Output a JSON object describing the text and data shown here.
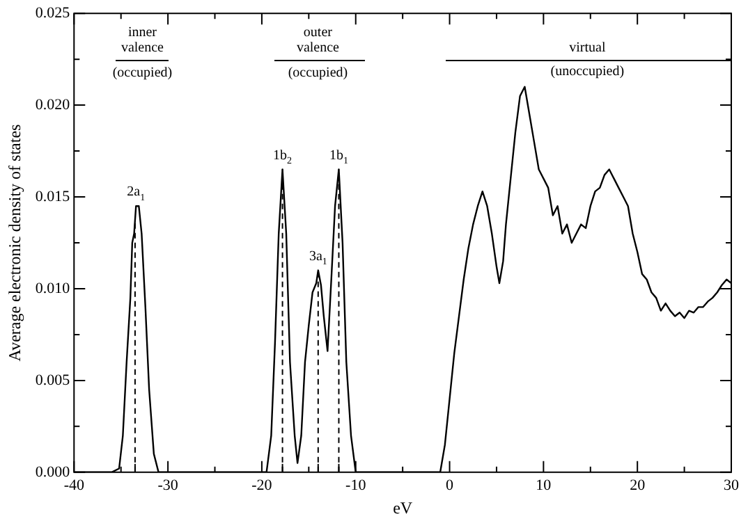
{
  "chart_data": {
    "type": "line",
    "xlabel": "eV",
    "ylabel": "Average electronic density of states",
    "x": [
      -40,
      -36,
      -35.2,
      -34.8,
      -34.4,
      -34,
      -33.8,
      -33.6,
      -33.4,
      -33.1,
      -32.8,
      -32.4,
      -32,
      -31.5,
      -31,
      -19.5,
      -19,
      -18.6,
      -18.2,
      -17.8,
      -17.4,
      -17,
      -16.5,
      -16.2,
      -15.8,
      -15.4,
      -15,
      -14.6,
      -14.2,
      -14,
      -13.7,
      -13.4,
      -13,
      -12.6,
      -12.2,
      -11.8,
      -11.4,
      -11,
      -10.5,
      -10,
      -1,
      -0.5,
      0,
      0.5,
      1,
      1.5,
      2,
      2.5,
      3,
      3.5,
      4,
      4.5,
      5,
      5.3,
      5.7,
      6,
      6.5,
      7,
      7.5,
      8,
      8.5,
      9,
      9.5,
      10,
      10.5,
      11,
      11.5,
      12,
      12.5,
      13,
      13.5,
      14,
      14.5,
      15,
      15.5,
      16,
      16.5,
      17,
      17.5,
      18,
      18.5,
      19,
      19.5,
      20,
      20.5,
      21,
      21.5,
      22,
      22.5,
      23,
      23.5,
      24,
      24.5,
      25,
      25.5,
      26,
      26.5,
      27,
      27.5,
      28,
      28.5,
      29,
      29.5,
      30
    ],
    "series": [
      {
        "color": "#000000",
        "values": [
          0,
          0,
          0.0002,
          0.002,
          0.006,
          0.0095,
          0.0125,
          0.013,
          0.0145,
          0.0145,
          0.013,
          0.009,
          0.0045,
          0.001,
          0,
          0,
          0.002,
          0.007,
          0.013,
          0.0165,
          0.013,
          0.006,
          0.002,
          0.0005,
          0.002,
          0.006,
          0.008,
          0.0098,
          0.0103,
          0.011,
          0.0102,
          0.0085,
          0.0066,
          0.0105,
          0.0145,
          0.0165,
          0.0125,
          0.006,
          0.002,
          0,
          0,
          0.0015,
          0.004,
          0.0065,
          0.0085,
          0.0105,
          0.0122,
          0.0135,
          0.0145,
          0.0153,
          0.0145,
          0.013,
          0.0112,
          0.0103,
          0.0115,
          0.0135,
          0.016,
          0.0185,
          0.0205,
          0.021,
          0.0195,
          0.018,
          0.0165,
          0.016,
          0.0155,
          0.014,
          0.0145,
          0.013,
          0.0135,
          0.0125,
          0.013,
          0.0135,
          0.0133,
          0.0145,
          0.0153,
          0.0155,
          0.0162,
          0.0165,
          0.016,
          0.0155,
          0.015,
          0.0145,
          0.013,
          0.012,
          0.0108,
          0.0105,
          0.0098,
          0.0095,
          0.0088,
          0.0092,
          0.0088,
          0.0085,
          0.0087,
          0.0084,
          0.0088,
          0.0087,
          0.009,
          0.009,
          0.0093,
          0.0095,
          0.0098,
          0.0102,
          0.0105,
          0.0103
        ]
      }
    ],
    "xlim": [
      -40,
      30
    ],
    "xticks": [
      -40,
      {
        "value": -35,
        "label": null
      },
      -30,
      {
        "value": -25,
        "label": null
      },
      -20,
      {
        "value": -15,
        "label": null
      },
      -10,
      {
        "value": -5,
        "label": null
      },
      0,
      {
        "value": 5,
        "label": null
      },
      10,
      {
        "value": 15,
        "label": null
      },
      20,
      {
        "value": 25,
        "label": null
      },
      30
    ],
    "ylim": [
      0,
      0.025
    ],
    "yticks": [
      {
        "value": 0,
        "label": "0.000"
      },
      {
        "value": 0.0025,
        "label": null
      },
      {
        "value": 0.005,
        "label": "0.005"
      },
      {
        "value": 0.0075,
        "label": null
      },
      {
        "value": 0.01,
        "label": "0.010"
      },
      {
        "value": 0.0125,
        "label": null
      },
      {
        "value": 0.015,
        "label": "0.015"
      },
      {
        "value": 0.0175,
        "label": null
      },
      {
        "value": 0.02,
        "label": "0.020"
      },
      {
        "value": 0.0225,
        "label": null
      },
      {
        "value": 0.025,
        "label": "0.025"
      }
    ],
    "ref_lines": [
      {
        "axis": "x",
        "value": -33.5,
        "line_style": "dashed"
      },
      {
        "axis": "x",
        "value": -17.8,
        "line_style": "dashed"
      },
      {
        "axis": "x",
        "value": -14,
        "line_style": "dashed"
      },
      {
        "axis": "x",
        "value": -11.8,
        "line_style": "dashed"
      }
    ],
    "annotations": [
      "inner",
      "valence",
      "(occupied)",
      "outer",
      "valence",
      "(occupied)",
      "virtual",
      "(unoccupied)",
      {
        "text": "2a$_{1}$",
        "x": -33.4,
        "y": 0.0145
      },
      {
        "text": "1b$_{2}$",
        "x": -17.8,
        "y": 0.0165
      },
      {
        "text": "3a$_{1}$",
        "x": -14,
        "y": 0.011
      },
      {
        "text": "1b$_{1}$",
        "x": -11.8,
        "y": 0.0165
      }
    ],
    "grid": false,
    "legend": false,
    "marker": "none",
    "line_style": "solid"
  }
}
